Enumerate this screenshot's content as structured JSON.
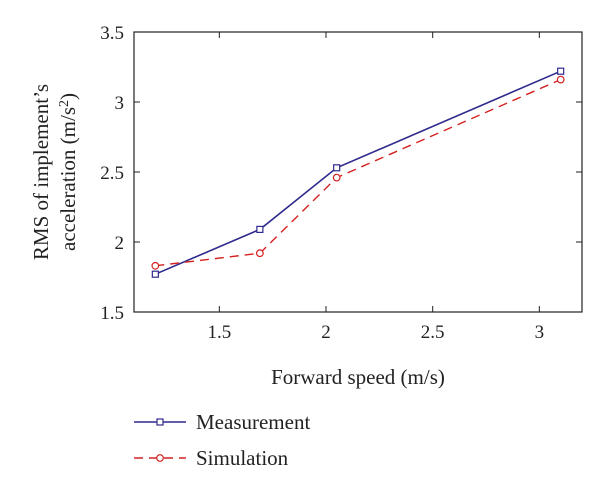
{
  "chart_data": {
    "type": "line",
    "xlabel": "Forward speed (m/s)",
    "ylabel_line1": "RMS of implement’s",
    "ylabel_line2": "acceleration (m/s",
    "ylabel_sup": "2",
    "ylabel_close": ")",
    "xlim": [
      1.1,
      3.2
    ],
    "ylim": [
      1.5,
      3.5
    ],
    "xticks": [
      1.5,
      2,
      2.5,
      3
    ],
    "xtick_labels": [
      "1.5",
      "2",
      "2.5",
      "3"
    ],
    "yticks": [
      1.5,
      2,
      2.5,
      3,
      3.5
    ],
    "ytick_labels": [
      "1.5",
      "2",
      "2.5",
      "3",
      "3.5"
    ],
    "grid": false,
    "legend_position": "below",
    "series": [
      {
        "name": "Measurement",
        "color": "#2e2a8c",
        "dash": "solid",
        "marker": "square",
        "x": [
          1.2,
          1.69,
          2.05,
          3.1
        ],
        "y": [
          1.77,
          2.09,
          2.53,
          3.22
        ]
      },
      {
        "name": "Simulation",
        "color": "#d62020",
        "dash": "dashed",
        "marker": "circle",
        "x": [
          1.2,
          1.69,
          2.05,
          3.1
        ],
        "y": [
          1.83,
          1.92,
          2.46,
          3.16
        ]
      }
    ]
  }
}
